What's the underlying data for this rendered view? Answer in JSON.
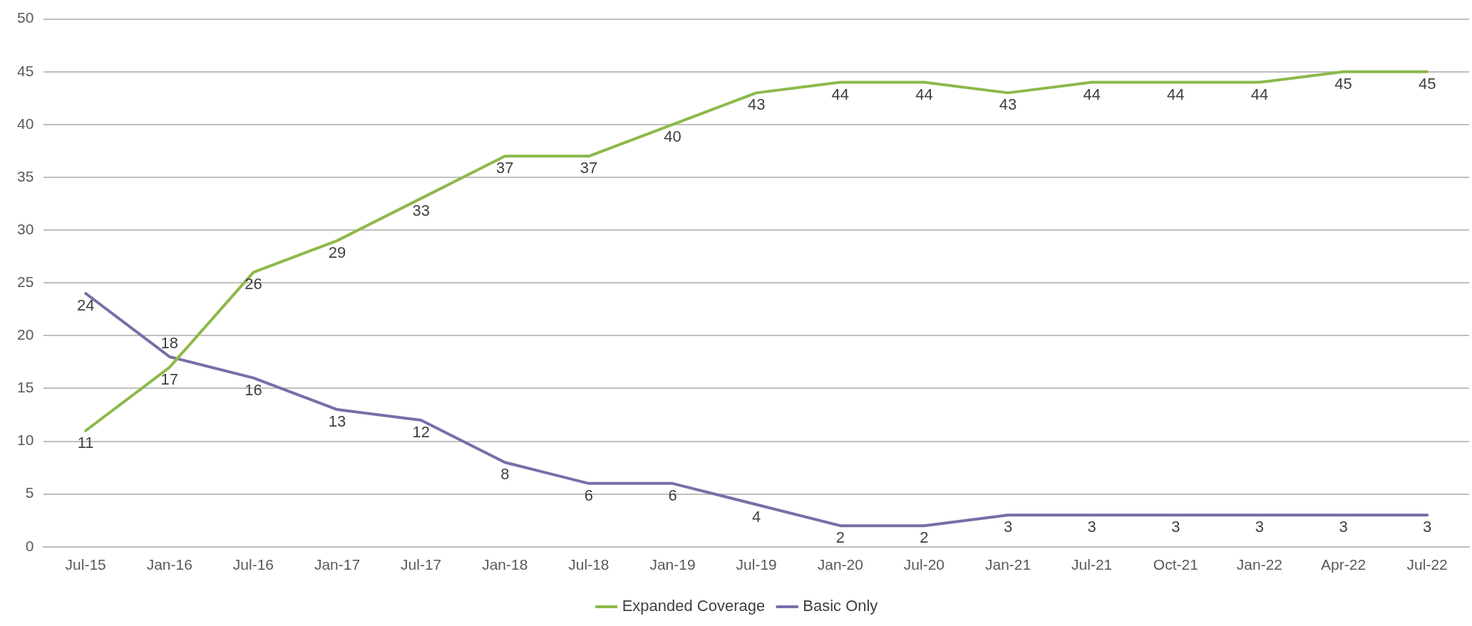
{
  "chart_data": {
    "type": "line",
    "categories": [
      "Jul-15",
      "Jan-16",
      "Jul-16",
      "Jan-17",
      "Jul-17",
      "Jan-18",
      "Jul-18",
      "Jan-19",
      "Jul-19",
      "Jan-20",
      "Jul-20",
      "Jan-21",
      "Jul-21",
      "Oct-21",
      "Jan-22",
      "Apr-22",
      "Jul-22"
    ],
    "series": [
      {
        "name": "Expanded Coverage",
        "color": "#8cb94a",
        "values": [
          11,
          17,
          26,
          29,
          33,
          37,
          37,
          40,
          43,
          44,
          44,
          43,
          44,
          44,
          44,
          45,
          45
        ]
      },
      {
        "name": "Basic Only",
        "color": "#7470a8",
        "values": [
          24,
          18,
          16,
          13,
          12,
          8,
          6,
          6,
          4,
          2,
          2,
          3,
          3,
          3,
          3,
          3,
          3
        ]
      }
    ],
    "ylim": [
      0,
      50
    ],
    "yticks": [
      0,
      5,
      10,
      15,
      20,
      25,
      30,
      35,
      40,
      45,
      50
    ],
    "data_labels": true,
    "grid": "y",
    "legend": "bottom",
    "marker": "none",
    "line_style": "solid"
  }
}
